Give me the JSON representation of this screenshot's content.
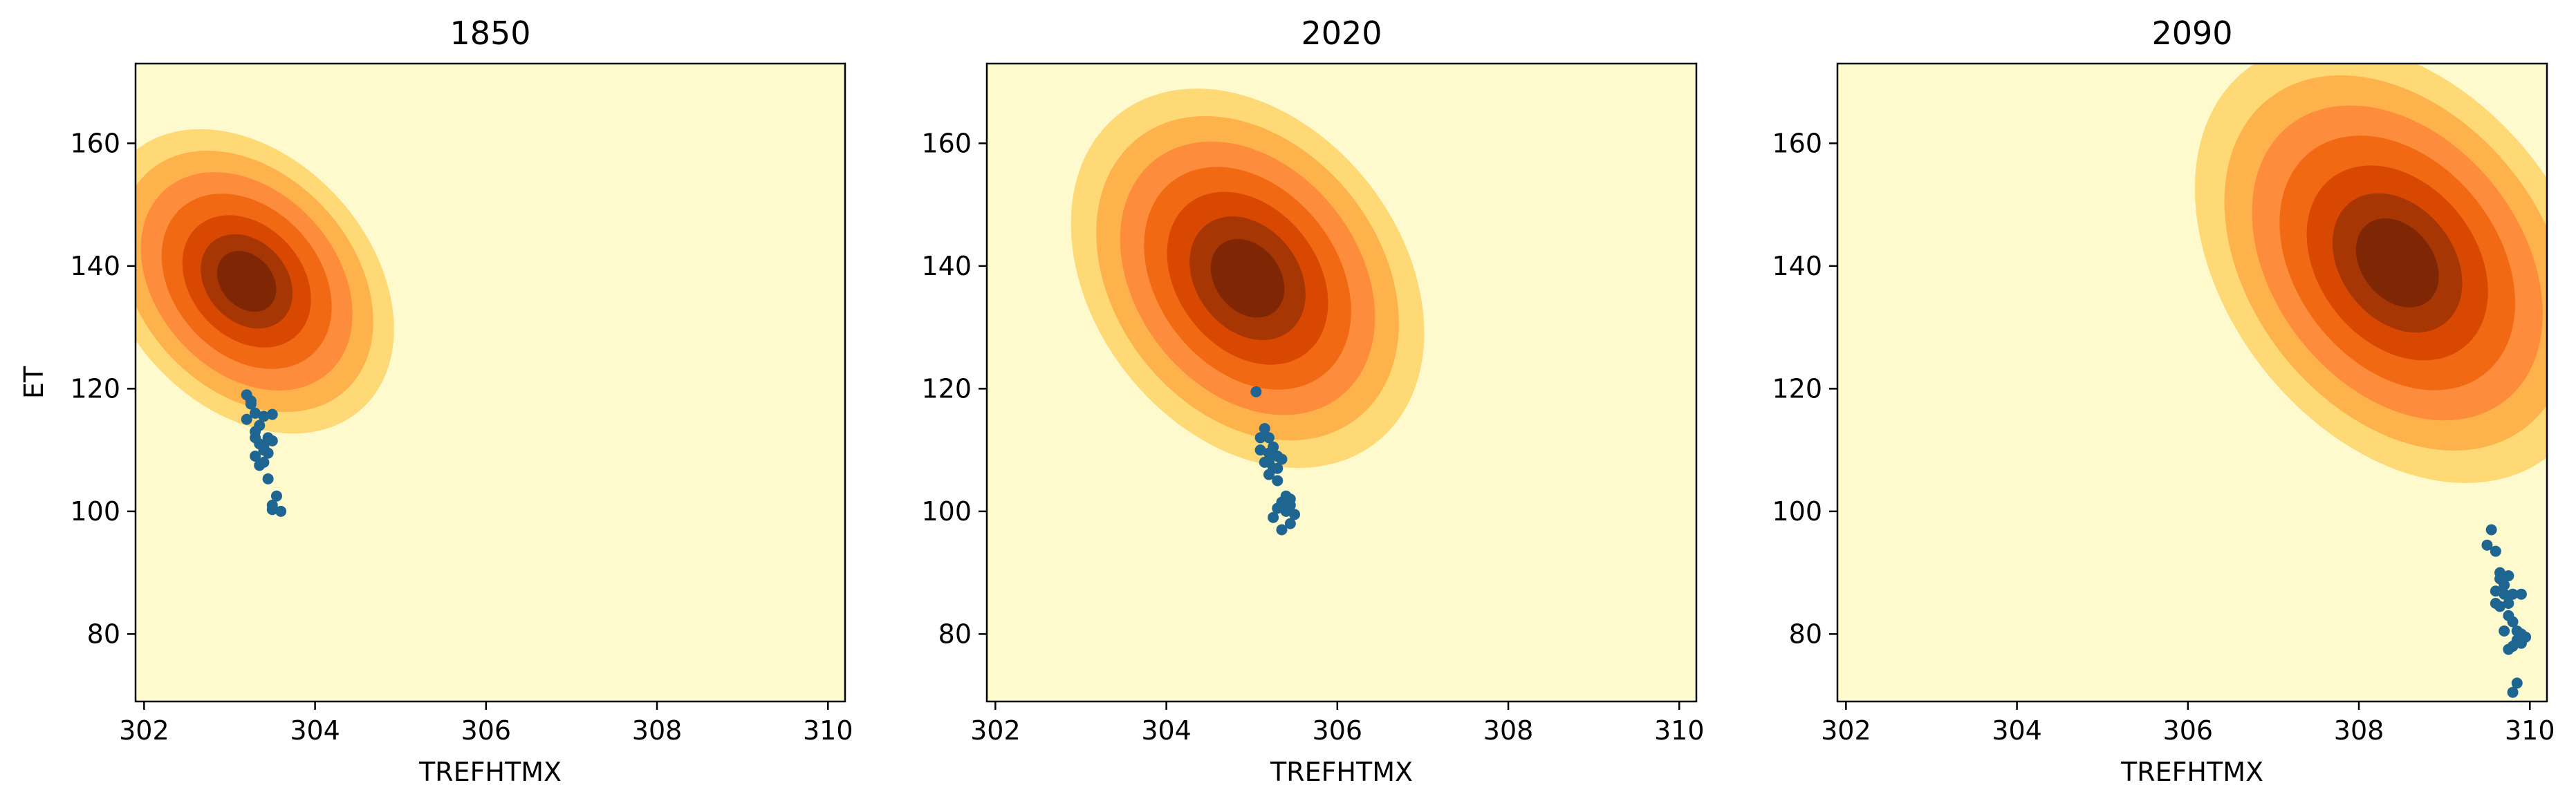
{
  "chart_data": [
    {
      "type": "scatter",
      "title": "1850",
      "xlabel": "TREFHTMX",
      "ylabel": "ET",
      "xlim": [
        301.9,
        310.2
      ],
      "ylim": [
        69,
        173
      ],
      "xticks": [
        302,
        304,
        306,
        308,
        310
      ],
      "yticks": [
        80,
        100,
        120,
        140,
        160
      ],
      "background_color": "#fffacd",
      "density_contours": {
        "center": [
          303.2,
          137.5
        ],
        "colors": [
          "#ffeda0",
          "#fed976",
          "#feb24c",
          "#fd8d3c",
          "#f16913",
          "#d94801",
          "#a63603",
          "#7f2704"
        ],
        "levels": [
          {
            "rx": 1.45,
            "ry": 28,
            "angle": -42
          },
          {
            "rx": 1.25,
            "ry": 24,
            "angle": -42
          },
          {
            "rx": 1.05,
            "ry": 20,
            "angle": -42
          },
          {
            "rx": 0.85,
            "ry": 16,
            "angle": -42
          },
          {
            "rx": 0.65,
            "ry": 12,
            "angle": -42
          },
          {
            "rx": 0.47,
            "ry": 8.5,
            "angle": -42
          },
          {
            "rx": 0.3,
            "ry": 5.5,
            "angle": -42
          }
        ]
      },
      "points": {
        "color": "#1f6591",
        "x": [
          303.2,
          303.25,
          303.3,
          303.2,
          303.35,
          303.3,
          303.4,
          303.5,
          303.45,
          303.35,
          303.4,
          303.5,
          303.3,
          303.45,
          303.4,
          303.55,
          303.5,
          303.6,
          303.5,
          303.45,
          303.35,
          303.3,
          303.25,
          303.4
        ],
        "y": [
          119,
          117.5,
          116,
          115,
          114,
          113,
          115.5,
          115.8,
          112,
          111,
          110.5,
          111.5,
          109,
          109.5,
          108,
          102.5,
          101,
          100,
          100.3,
          105.3,
          107.5,
          112,
          118,
          110
        ]
      }
    },
    {
      "type": "scatter",
      "title": "2020",
      "xlabel": "TREFHTMX",
      "ylabel": "",
      "xlim": [
        301.9,
        310.2
      ],
      "ylim": [
        69,
        173
      ],
      "xticks": [
        302,
        304,
        306,
        308,
        310
      ],
      "yticks": [
        80,
        100,
        120,
        140,
        160
      ],
      "background_color": "#fffacd",
      "density_contours": {
        "center": [
          304.95,
          138
        ],
        "colors": [
          "#ffeda0",
          "#fed976",
          "#feb24c",
          "#fd8d3c",
          "#f16913",
          "#d94801",
          "#a63603",
          "#7f2704"
        ],
        "levels": [
          {
            "rx": 1.8,
            "ry": 34,
            "angle": -38
          },
          {
            "rx": 1.55,
            "ry": 29,
            "angle": -38
          },
          {
            "rx": 1.3,
            "ry": 24.5,
            "angle": -38
          },
          {
            "rx": 1.05,
            "ry": 20,
            "angle": -38
          },
          {
            "rx": 0.82,
            "ry": 15.5,
            "angle": -38
          },
          {
            "rx": 0.6,
            "ry": 11,
            "angle": -38
          },
          {
            "rx": 0.38,
            "ry": 7,
            "angle": -38
          }
        ]
      },
      "points": {
        "color": "#1f6591",
        "x": [
          305.05,
          305.15,
          305.2,
          305.25,
          305.1,
          305.2,
          305.3,
          305.15,
          305.25,
          305.35,
          305.2,
          305.3,
          305.4,
          305.45,
          305.35,
          305.3,
          305.45,
          305.4,
          305.5,
          305.45,
          305.35,
          305.25,
          305.2,
          305.3,
          305.1
        ],
        "y": [
          119.5,
          113.5,
          112,
          110.5,
          110,
          109.5,
          109,
          108,
          107,
          108.5,
          106,
          105,
          102.5,
          102,
          101.5,
          100.5,
          101,
          100,
          99.5,
          98,
          97,
          99,
          108,
          107,
          112
        ]
      }
    },
    {
      "type": "scatter",
      "title": "2090",
      "xlabel": "TREFHTMX",
      "ylabel": "",
      "xlim": [
        301.9,
        310.2
      ],
      "ylim": [
        69,
        173
      ],
      "xticks": [
        302,
        304,
        306,
        308,
        310
      ],
      "yticks": [
        80,
        100,
        120,
        140,
        160
      ],
      "background_color": "#fffacd",
      "density_contours": {
        "center": [
          308.45,
          140.5
        ],
        "colors": [
          "#ffeda0",
          "#fed976",
          "#feb24c",
          "#fd8d3c",
          "#f16913",
          "#d94801",
          "#a63603",
          "#7f2704"
        ],
        "levels": [
          {
            "rx": 2.0,
            "ry": 40,
            "angle": -38
          },
          {
            "rx": 1.72,
            "ry": 34,
            "angle": -38
          },
          {
            "rx": 1.45,
            "ry": 28.5,
            "angle": -38
          },
          {
            "rx": 1.18,
            "ry": 23,
            "angle": -38
          },
          {
            "rx": 0.92,
            "ry": 17.5,
            "angle": -38
          },
          {
            "rx": 0.66,
            "ry": 12.5,
            "angle": -38
          },
          {
            "rx": 0.42,
            "ry": 8,
            "angle": -38
          }
        ]
      },
      "points": {
        "color": "#1f6591",
        "x": [
          309.55,
          309.5,
          309.6,
          309.65,
          309.7,
          309.6,
          309.75,
          309.7,
          309.65,
          309.8,
          309.9,
          309.75,
          309.8,
          309.85,
          309.9,
          309.95,
          309.85,
          309.8,
          309.75,
          309.7,
          309.9,
          309.85,
          309.8,
          309.75,
          309.65,
          309.6
        ],
        "y": [
          97,
          94.5,
          93.5,
          89,
          88,
          87,
          89.5,
          86.5,
          84.5,
          86.5,
          86.5,
          83,
          82,
          80.5,
          80,
          79.5,
          79,
          78,
          77.5,
          80.5,
          78.5,
          72,
          70.5,
          85,
          90,
          85
        ]
      }
    }
  ]
}
